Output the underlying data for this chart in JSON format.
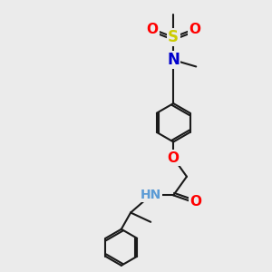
{
  "background_color": "#ebebeb",
  "bond_color": "#1a1a1a",
  "bond_width": 1.5,
  "atom_colors": {
    "N": "#0000cc",
    "O": "#ff0000",
    "S": "#cccc00",
    "NH": "#5b9bd5"
  },
  "font_size": 10
}
